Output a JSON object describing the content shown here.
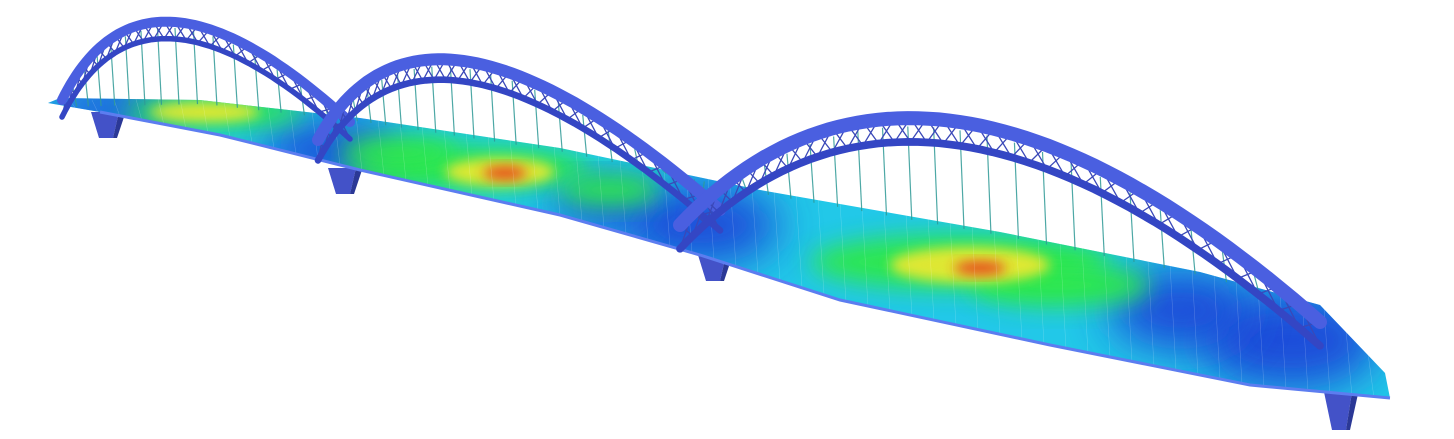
{
  "scene": {
    "subject": "three-span-tied-arch-bridge",
    "render": "finite-element-contour",
    "arch_count": 3,
    "pier_count": 4
  },
  "colors": {
    "background": "#ffffff",
    "arch": "#4a5fe0",
    "arch_dark": "#3446c4",
    "truss": "#3a48b8",
    "hanger": "#2f9a96",
    "pier": "#4352c8",
    "pier_shade": "#2b3896",
    "deck_edge": "#5c7df0",
    "contour_low": "#1e3fd8",
    "contour_mid_low": "#22c8e8",
    "contour_mid": "#2ee84a",
    "contour_mid_high": "#e8e830",
    "contour_high": "#e83a1a"
  },
  "stress_hotspots": [
    {
      "span": 1,
      "level": "medium-high"
    },
    {
      "span": 2,
      "level": "high"
    },
    {
      "span": 3,
      "level": "high"
    }
  ]
}
